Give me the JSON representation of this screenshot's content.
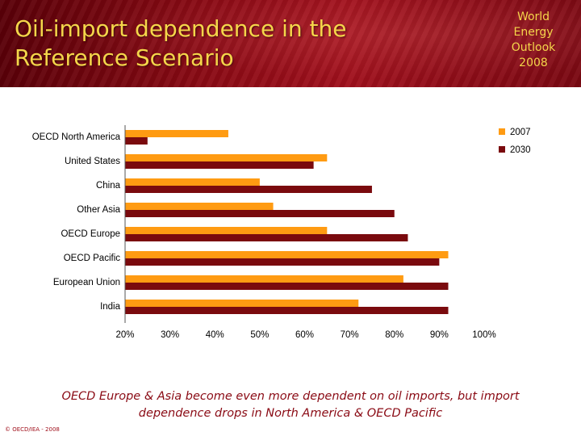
{
  "header": {
    "title_line1": "Oil-import dependence in the",
    "title_line2": "Reference Scenario",
    "badge_line1": "World",
    "badge_line2": "Energy",
    "badge_line3": "Outlook",
    "badge_line4": "2008"
  },
  "chart_data": {
    "type": "bar",
    "orientation": "horizontal",
    "categories": [
      "OECD North America",
      "United States",
      "China",
      "Other Asia",
      "OECD Europe",
      "OECD Pacific",
      "European Union",
      "India"
    ],
    "series": [
      {
        "name": "2007",
        "color": "#ff9b12",
        "values": [
          0.43,
          0.65,
          0.5,
          0.53,
          0.65,
          0.92,
          0.82,
          0.72
        ]
      },
      {
        "name": "2030",
        "color": "#7a0a0e",
        "values": [
          0.25,
          0.62,
          0.75,
          0.8,
          0.83,
          0.9,
          0.92,
          0.92
        ]
      }
    ],
    "xlim": [
      0.2,
      1.0
    ],
    "xticks": [
      "20%",
      "30%",
      "40%",
      "50%",
      "60%",
      "70%",
      "80%",
      "90%",
      "100%"
    ],
    "legend_position": "top-right",
    "grid": false
  },
  "caption": {
    "line1": "OECD Europe & Asia become even more dependent on oil imports, but import",
    "line2": "dependence drops in North America & OECD Pacific"
  },
  "footer": {
    "copyright": "© OECD/IEA - 2008"
  }
}
